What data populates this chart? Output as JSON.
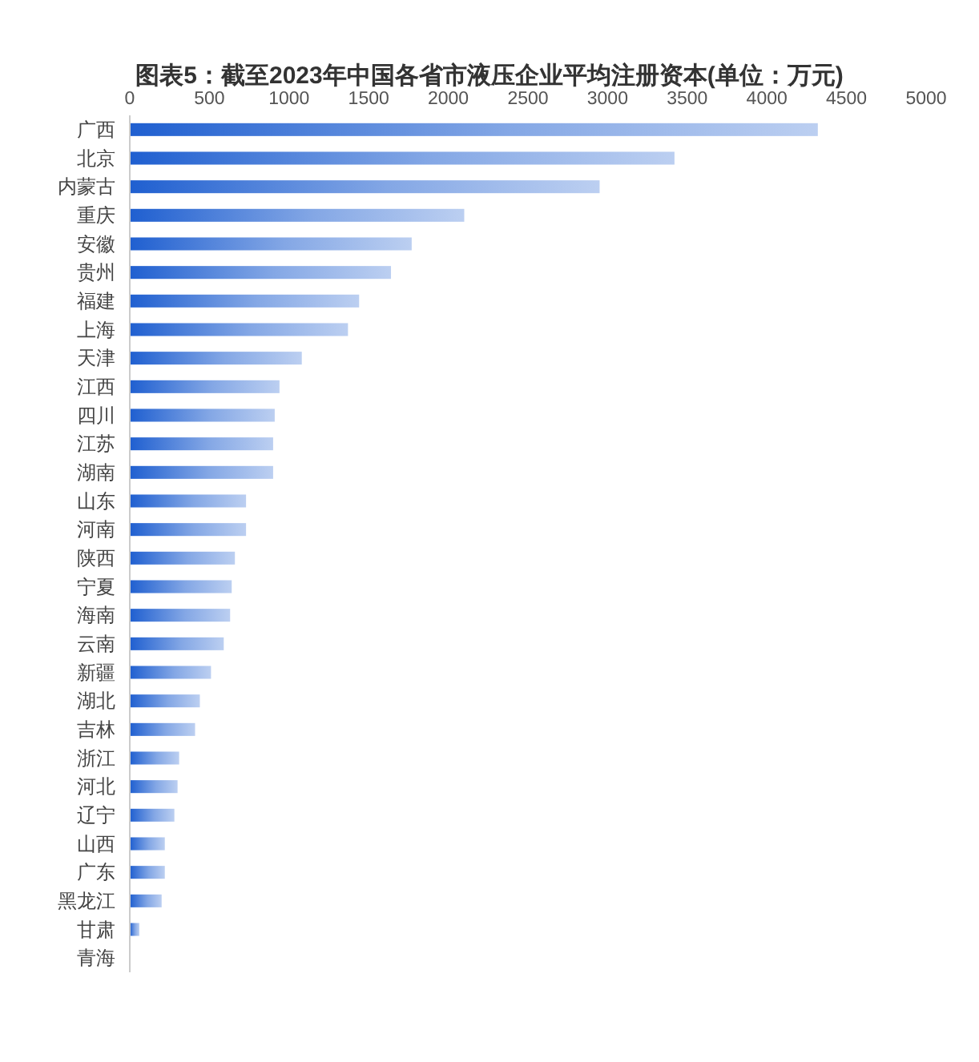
{
  "chart_data": {
    "type": "bar",
    "orientation": "horizontal",
    "title": "图表5：截至2023年中国各省市液压企业平均注册资本(单位：万元)",
    "categories": [
      "广西",
      "北京",
      "内蒙古",
      "重庆",
      "安徽",
      "贵州",
      "福建",
      "上海",
      "天津",
      "江西",
      "四川",
      "江苏",
      "湖南",
      "山东",
      "河南",
      "陕西",
      "宁夏",
      "海南",
      "云南",
      "新疆",
      "湖北",
      "吉林",
      "浙江",
      "河北",
      "辽宁",
      "山西",
      "广东",
      "黑龙江",
      "甘肃",
      "青海"
    ],
    "values": [
      4320,
      3420,
      2950,
      2100,
      1770,
      1640,
      1440,
      1370,
      1080,
      940,
      910,
      900,
      900,
      730,
      730,
      660,
      640,
      630,
      590,
      510,
      440,
      410,
      310,
      300,
      280,
      220,
      220,
      200,
      60,
      0
    ],
    "color": "#1f5fd0",
    "xlim": [
      0,
      5000
    ],
    "xticks": [
      0,
      500,
      1000,
      1500,
      2000,
      2500,
      3000,
      3500,
      4000,
      4500,
      5000
    ]
  }
}
